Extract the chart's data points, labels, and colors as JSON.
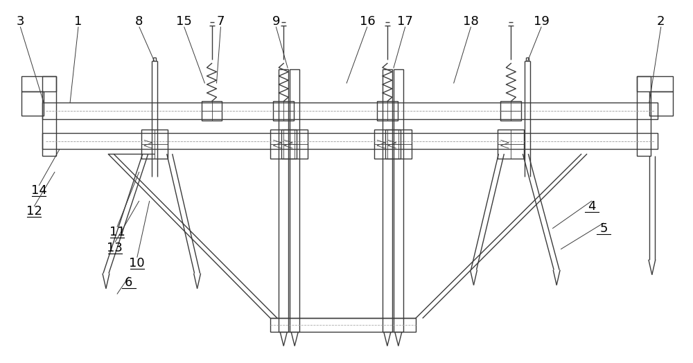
{
  "bg_color": "#ffffff",
  "lc": "#3a3a3a",
  "lw": 1.0,
  "tlw": 0.6,
  "fig_w": 10.0,
  "fig_h": 5.24,
  "dpi": 100
}
